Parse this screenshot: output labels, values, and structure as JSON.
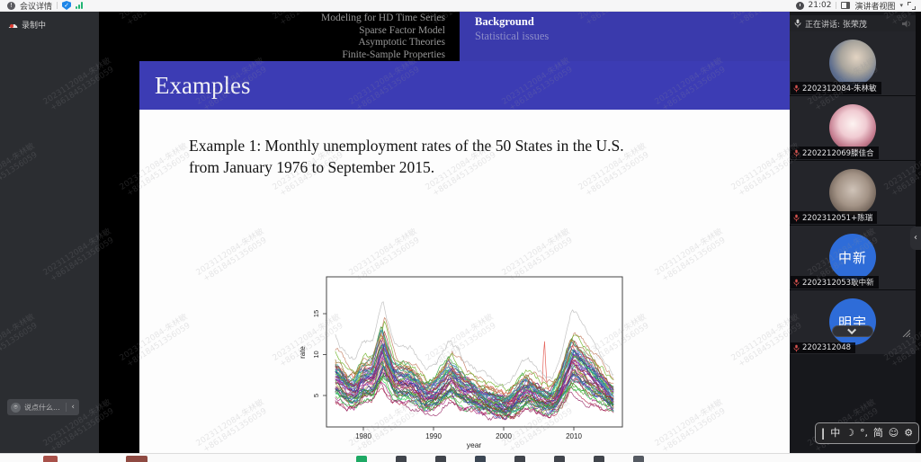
{
  "top_bar": {
    "meeting_detail_label": "会议详情",
    "info_glyph": "!",
    "shield_glyph": "✓",
    "time": "21:02",
    "view_mode_label": "演讲者视图",
    "view_mode_caret": "▾"
  },
  "left_panel": {
    "recording_label": "录制中",
    "cloud_glyph": "☁",
    "chat_placeholder": "说点什么...",
    "chat_collapse_glyph": "‹"
  },
  "slide": {
    "header_lines": [
      "Modeling for HD Time Series",
      "Sparse Factor Model",
      "Asymptotic Theories",
      "Finite-Sample Properties"
    ],
    "background_title": "Background",
    "background_subtitle": "Statistical issues",
    "banner_title": "Examples",
    "body_line1": "Example 1: Monthly unemployment rates of the 50 States in the U.S.",
    "body_line2": "from January 1976 to September 2015.",
    "colors": {
      "banner_blue": "#3c3cb4",
      "header_blue": "#3a3aac"
    }
  },
  "chart_data": {
    "type": "line",
    "description": "Spaghetti plot of monthly unemployment rates for the 50 U.S. states, Jan 1976 - Sep 2015",
    "xlabel": "year",
    "ylabel": "rate",
    "x_ticks": [
      1980,
      1990,
      2000,
      2010
    ],
    "y_ticks": [
      5,
      10,
      15
    ],
    "x_range": [
      1976,
      2015.75
    ],
    "y_range": [
      1.5,
      19.5
    ],
    "n_series": 50,
    "mean_curve_keypoints": [
      [
        1976,
        7.8
      ],
      [
        1978,
        6.0
      ],
      [
        1979,
        5.8
      ],
      [
        1980,
        7.2
      ],
      [
        1981.5,
        7.4
      ],
      [
        1982.9,
        10.8
      ],
      [
        1984.5,
        7.2
      ],
      [
        1986.8,
        7.0
      ],
      [
        1989,
        5.2
      ],
      [
        1990.5,
        5.6
      ],
      [
        1992.5,
        7.6
      ],
      [
        1994.5,
        6.0
      ],
      [
        1997,
        4.9
      ],
      [
        2000.5,
        3.9
      ],
      [
        2003.5,
        6.0
      ],
      [
        2005,
        5.1
      ],
      [
        2007,
        4.5
      ],
      [
        2008,
        5.8
      ],
      [
        2009.9,
        9.9
      ],
      [
        2011,
        8.9
      ],
      [
        2013,
        7.3
      ],
      [
        2015.75,
        5.0
      ]
    ],
    "notable_features": {
      "peak_1983_max": 18.5,
      "peak_2010_max": 14.5,
      "red_spike_year": 2005.8,
      "red_spike_value": 11.5
    },
    "grid": false,
    "legend": false
  },
  "right_panel": {
    "speaking_label": "正在讲话: 张荣茂",
    "participants": [
      {
        "name": "2202312084-朱林敏",
        "avatar": "photo-hand"
      },
      {
        "name": "2202212069滕佳合",
        "avatar": "photo-anime"
      },
      {
        "name": "2202312051+陈瑞",
        "avatar": "photo-portrait"
      },
      {
        "name": "2202312053耿中新",
        "avatar": "text",
        "avatar_text": "中新"
      },
      {
        "name": "2202312048",
        "avatar": "text",
        "avatar_text": "明宇"
      }
    ],
    "scroll_tab_glyph": "‹"
  },
  "ime_bar": {
    "items": [
      "|",
      "中",
      "☽",
      "°,",
      "简",
      "☺",
      "⚙"
    ]
  },
  "watermark": {
    "line1": "2023112084-朱林敏",
    "line2": "+8618451356059"
  },
  "bottom_bar": {
    "left_stub_colors": [
      "#a8514a",
      "#8f4a42"
    ],
    "center_stub_colors": [
      "#1ea964",
      "#41454c",
      "#41454c",
      "#3c4754",
      "#41454c",
      "#41454c",
      "#41454c",
      "#555a62"
    ]
  }
}
